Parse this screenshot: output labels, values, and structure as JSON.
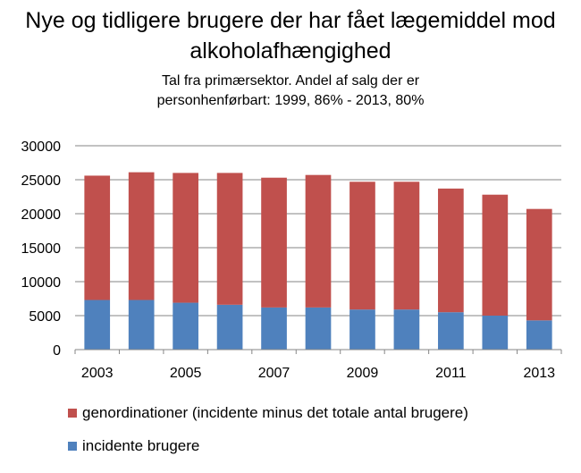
{
  "chart_data": {
    "type": "bar",
    "stacked": true,
    "title": "Nye og tidligere brugere der har fået lægemiddel mod alkoholafhængighed",
    "subtitle_lines": [
      "Tal fra primærsektor. Andel af salg der er",
      "personhenførbart: 1999, 86% - 2013, 80%"
    ],
    "categories": [
      "2003",
      "2004",
      "2005",
      "2006",
      "2007",
      "2008",
      "2009",
      "2010",
      "2011",
      "2012",
      "2013"
    ],
    "x_tick_labels": [
      "2003",
      "",
      "2005",
      "",
      "2007",
      "",
      "2009",
      "",
      "2011",
      "",
      "2013"
    ],
    "ylim": [
      0,
      30000
    ],
    "y_ticks": [
      0,
      5000,
      10000,
      15000,
      20000,
      25000,
      30000
    ],
    "grid": true,
    "legend_placement": "bottom",
    "series": [
      {
        "name": "incidente brugere",
        "color": "#4F81BD",
        "values": [
          7300,
          7300,
          6900,
          6600,
          6200,
          6200,
          5900,
          5900,
          5500,
          5000,
          4300
        ]
      },
      {
        "name": "genordinationer (incidente minus det totale antal brugere)",
        "color": "#C0504D",
        "values": [
          18300,
          18800,
          19100,
          19400,
          19100,
          19500,
          18800,
          18800,
          18200,
          17800,
          16400
        ]
      }
    ]
  }
}
